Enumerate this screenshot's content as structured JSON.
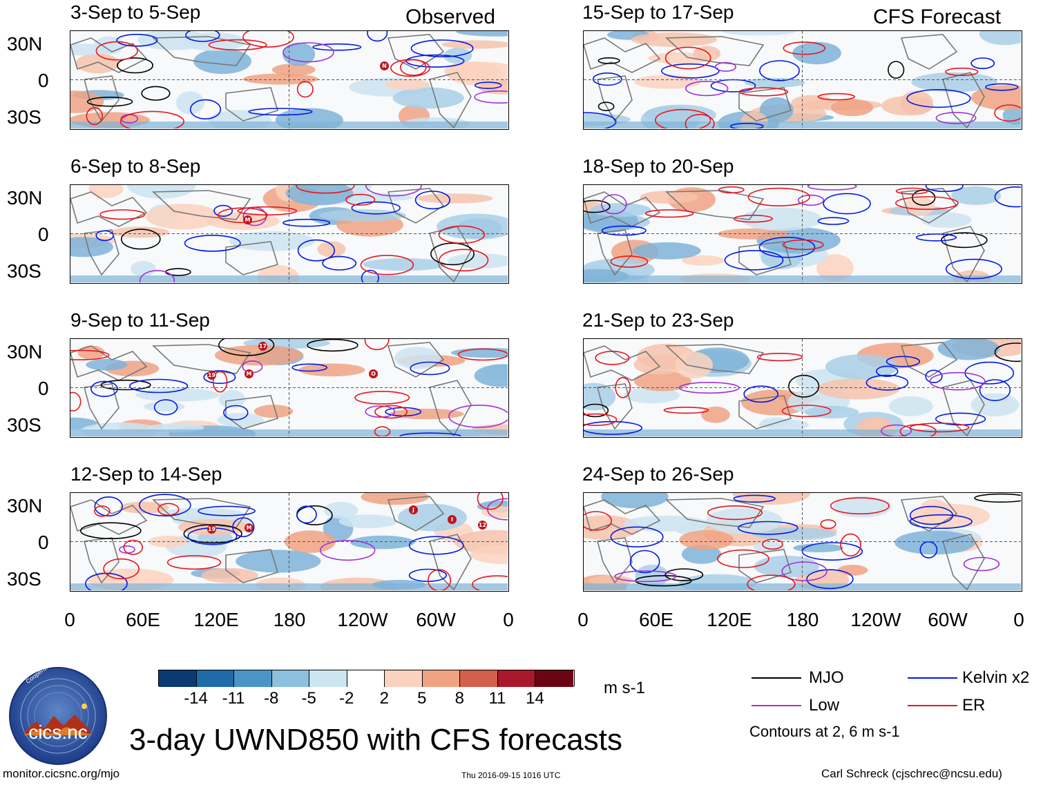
{
  "observed_label": "Observed",
  "forecast_label": "CFS Forecast",
  "left_panels": [
    "3-Sep to 5-Sep",
    "6-Sep to 8-Sep",
    "9-Sep to 11-Sep",
    "12-Sep to 14-Sep"
  ],
  "right_panels": [
    "15-Sep to 17-Sep",
    "18-Sep to 20-Sep",
    "21-Sep to 23-Sep",
    "24-Sep to 26-Sep"
  ],
  "lat_labels": [
    "30N",
    "0",
    "30S"
  ],
  "lon_labels": [
    "0",
    "60E",
    "120E",
    "180",
    "120W",
    "60W",
    "0"
  ],
  "colorbar": {
    "ticks": [
      "-14",
      "-11",
      "-8",
      "-5",
      "-2",
      "2",
      "5",
      "8",
      "11",
      "14"
    ],
    "colors": [
      "#0b3a72",
      "#1f6aa8",
      "#4b95c6",
      "#8dbfdf",
      "#cde4f1",
      "#ffffff",
      "#fbd2bd",
      "#f0a382",
      "#d2604a",
      "#a9192d",
      "#6b0515"
    ],
    "units": "m s-1"
  },
  "legend": {
    "items": [
      {
        "label": "MJO",
        "color": "#000000"
      },
      {
        "label": "Kelvin x2",
        "color": "#0018e6"
      },
      {
        "label": "Low",
        "color": "#a030d8"
      },
      {
        "label": "ER",
        "color": "#e8141c"
      }
    ],
    "note": "Contours at 2, 6 m s-1"
  },
  "title": "3-day UWND850 with CFS forecasts",
  "logo_text": "cics.nc",
  "logo_ring_text": "Cooperative Institute for Climate and Satellites",
  "footer_left": "monitor.cicsnc.org/mjo",
  "footer_center": "Thu 2016-09-15 1016 UTC",
  "footer_right": "Carl Schreck (cjschrec@ncsu.edu)",
  "storm_markers": [
    {
      "panel": 0,
      "label": "N"
    },
    {
      "panel": 1,
      "label": "M"
    },
    {
      "panel": 2,
      "label": "17"
    },
    {
      "panel": 2,
      "label": "19"
    },
    {
      "panel": 2,
      "label": "M"
    },
    {
      "panel": 2,
      "label": "O"
    },
    {
      "panel": 3,
      "label": "J"
    },
    {
      "panel": 3,
      "label": "19"
    },
    {
      "panel": 3,
      "label": "M"
    },
    {
      "panel": 3,
      "label": "I"
    },
    {
      "panel": 3,
      "label": "12"
    }
  ]
}
